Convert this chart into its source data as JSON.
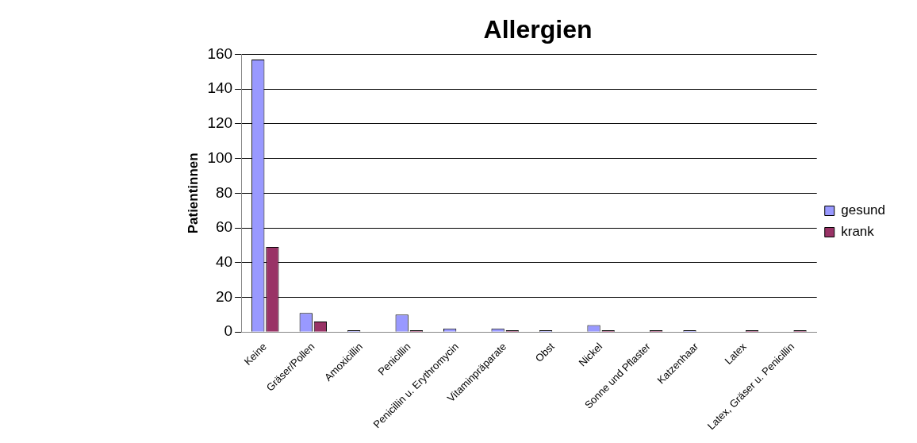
{
  "chart_data": {
    "type": "bar",
    "title": "Allergien",
    "ylabel": "Patientinnen",
    "categories": [
      "Keine",
      "Gräser/Pollen",
      "Amoxicillin",
      "Penicillin",
      "Penicillin u. Erythromycin",
      "Vitaminpräparate",
      "Obst",
      "Nickel",
      "Sonne und Pflaster",
      "Katzenhaar",
      "Latex",
      "Latex, Gräser u. Penicillin"
    ],
    "series": [
      {
        "name": "gesund",
        "color": "#9999ff",
        "values": [
          157,
          11,
          1,
          10,
          2,
          2,
          1,
          4,
          0,
          1,
          0,
          0
        ]
      },
      {
        "name": "krank",
        "color": "#993366",
        "values": [
          49,
          6,
          0,
          1,
          0,
          1,
          0,
          1,
          1,
          0,
          1,
          1
        ]
      }
    ],
    "ylim": [
      0,
      160
    ],
    "yticks": [
      0,
      20,
      40,
      60,
      80,
      100,
      120,
      140,
      160
    ],
    "grid": "y",
    "legend": "right"
  }
}
